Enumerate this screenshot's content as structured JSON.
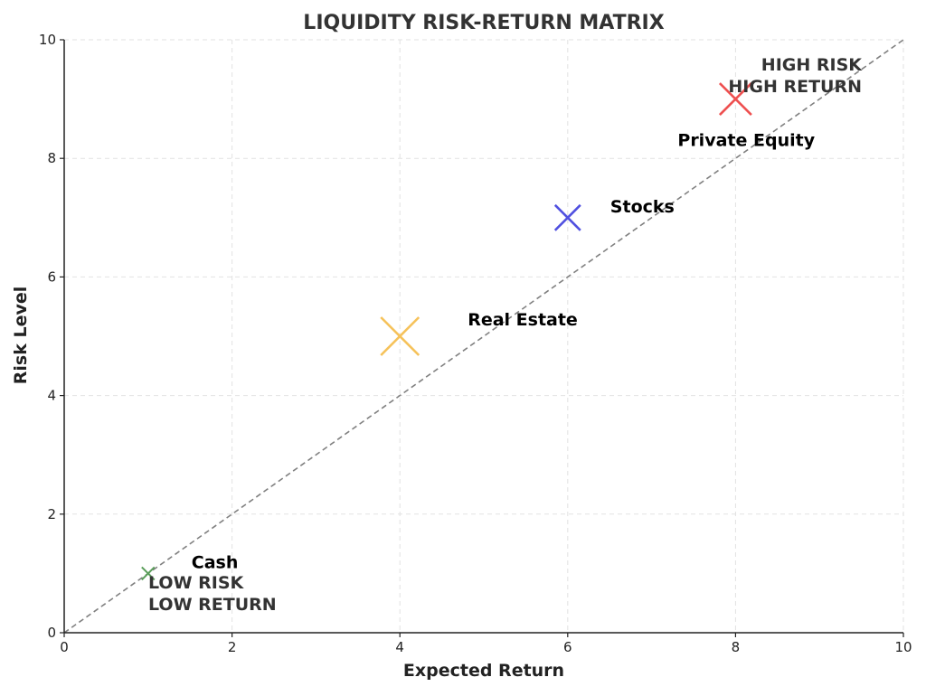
{
  "chart_data": {
    "type": "scatter",
    "title": "LIQUIDITY RISK-RETURN MATRIX",
    "xlabel": "Expected Return",
    "ylabel": "Risk Level",
    "xlim": [
      0,
      10
    ],
    "ylim": [
      0,
      10
    ],
    "xticks": [
      0,
      2,
      4,
      6,
      8,
      10
    ],
    "yticks": [
      0,
      2,
      4,
      6,
      8,
      10
    ],
    "grid": true,
    "reference_line": {
      "from": [
        0,
        0
      ],
      "to": [
        10,
        10
      ],
      "style": "dashed",
      "color": "#808080"
    },
    "points": [
      {
        "label": "Cash",
        "x": 1,
        "y": 1,
        "color": "#5a9e5a",
        "relative_size": 1
      },
      {
        "label": "Real Estate",
        "x": 4,
        "y": 5,
        "color": "#f6c25a",
        "relative_size": 3
      },
      {
        "label": "Stocks",
        "x": 6,
        "y": 7,
        "color": "#5050e0",
        "relative_size": 2
      },
      {
        "label": "Private Equity",
        "x": 8,
        "y": 9,
        "color": "#ee5050",
        "relative_size": 2.5
      }
    ],
    "annotations": [
      {
        "lines": [
          "HIGH RISK",
          "HIGH RETURN"
        ]
      },
      {
        "lines": [
          "LOW RISK",
          "LOW RETURN"
        ]
      }
    ]
  }
}
